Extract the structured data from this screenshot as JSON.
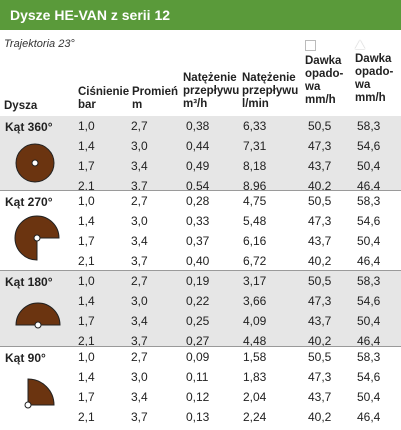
{
  "title": "Dysze HE-VAN z serii 12",
  "subtitle": "Trajektoria 23°",
  "headers": {
    "dysza": "Dysza",
    "cisnienie": [
      "Ciśnienie",
      "bar"
    ],
    "promien": [
      "Promień",
      "m"
    ],
    "natezenie_m3": [
      "Natężenie",
      "przepływu",
      "m³/h"
    ],
    "natezenie_lmin": [
      "Natężenie",
      "przepływu",
      "l/min"
    ],
    "dawka_square": [
      "Dawka",
      "opado-",
      "wa",
      "mm/h"
    ],
    "dawka_triangle": [
      "Dawka",
      "opado-",
      "wa",
      "mm/h"
    ]
  },
  "icons": {
    "square": "square-marker-icon",
    "triangle": "triangle-marker-icon"
  },
  "colors": {
    "header_green": "#5a9a3a",
    "nozzle_brown": "#6b3410",
    "row_gray": "#e6e6e6"
  },
  "groups": [
    {
      "label": "Kąt 360°",
      "shape": "circle-360-icon",
      "rows": [
        [
          "1,0",
          "2,7",
          "0,38",
          "6,33",
          "50,5",
          "58,3"
        ],
        [
          "1,4",
          "3,0",
          "0,44",
          "7,31",
          "47,3",
          "54,6"
        ],
        [
          "1,7",
          "3,4",
          "0,49",
          "8,18",
          "43,7",
          "50,4"
        ],
        [
          "2,1",
          "3,7",
          "0,54",
          "8,96",
          "40,2",
          "46,4"
        ]
      ]
    },
    {
      "label": "Kąt 270°",
      "shape": "three-quarter-circle-icon",
      "rows": [
        [
          "1,0",
          "2,7",
          "0,28",
          "4,75",
          "50,5",
          "58,3"
        ],
        [
          "1,4",
          "3,0",
          "0,33",
          "5,48",
          "47,3",
          "54,6"
        ],
        [
          "1,7",
          "3,4",
          "0,37",
          "6,16",
          "43,7",
          "50,4"
        ],
        [
          "2,1",
          "3,7",
          "0,40",
          "6,72",
          "40,2",
          "46,4"
        ]
      ]
    },
    {
      "label": "Kąt 180°",
      "shape": "half-circle-icon",
      "rows": [
        [
          "1,0",
          "2,7",
          "0,19",
          "3,17",
          "50,5",
          "58,3"
        ],
        [
          "1,4",
          "3,0",
          "0,22",
          "3,66",
          "47,3",
          "54,6"
        ],
        [
          "1,7",
          "3,4",
          "0,25",
          "4,09",
          "43,7",
          "50,4"
        ],
        [
          "2,1",
          "3,7",
          "0,27",
          "4,48",
          "40,2",
          "46,4"
        ]
      ]
    },
    {
      "label": "Kąt 90°",
      "shape": "quarter-circle-icon",
      "rows": [
        [
          "1,0",
          "2,7",
          "0,09",
          "1,58",
          "50,5",
          "58,3"
        ],
        [
          "1,4",
          "3,0",
          "0,11",
          "1,83",
          "47,3",
          "54,6"
        ],
        [
          "1,7",
          "3,4",
          "0,12",
          "2,04",
          "43,7",
          "50,4"
        ],
        [
          "2,1",
          "3,7",
          "0,13",
          "2,24",
          "40,2",
          "46,4"
        ]
      ]
    }
  ]
}
